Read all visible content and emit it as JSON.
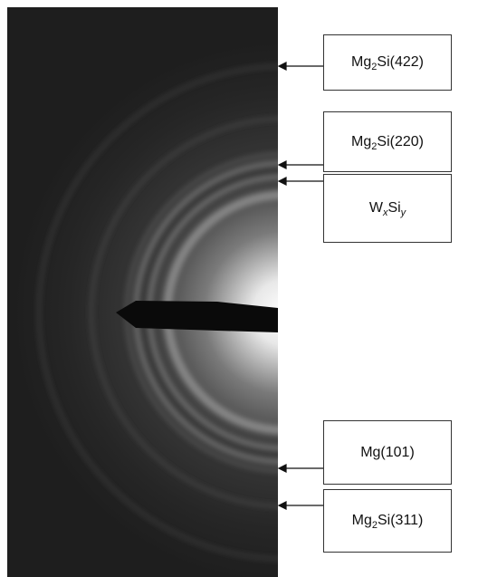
{
  "labels": [
    {
      "parts": [
        "Mg",
        "2",
        "Si(422)"
      ]
    },
    {
      "parts": [
        "Mg",
        "2",
        "Si(220)"
      ]
    },
    {
      "parts": [
        "W",
        "x",
        "Si",
        "y"
      ]
    },
    {
      "parts": [
        "Mg(101)"
      ]
    },
    {
      "parts": [
        "Mg",
        "2",
        "Si(311)"
      ]
    }
  ]
}
